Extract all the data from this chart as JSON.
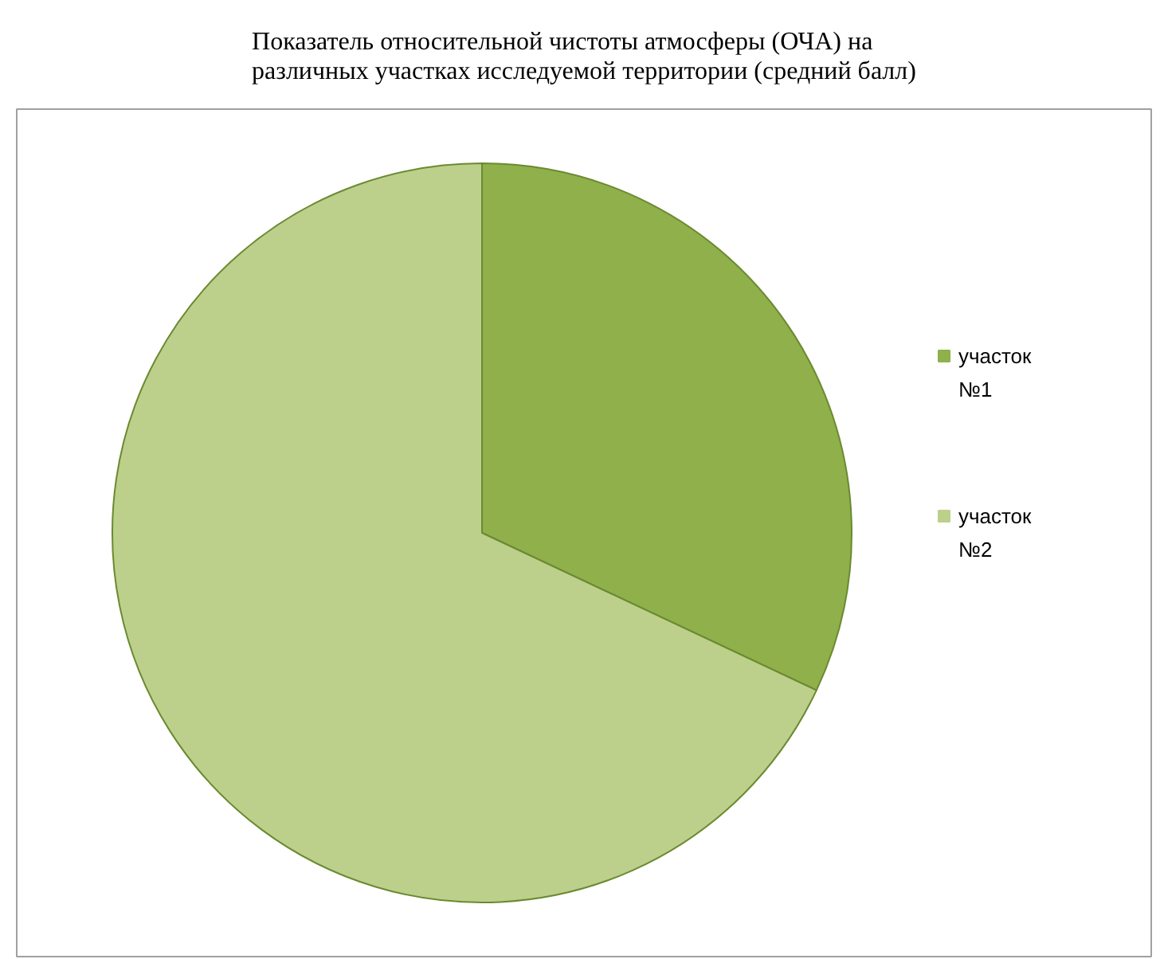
{
  "chart_data": {
    "type": "pie",
    "title": "Показатель относительной чистоты атмосферы (ОЧА) на различных участках исследуемой территории (средний балл)",
    "categories": [
      "участок №1",
      "участок №2"
    ],
    "values": [
      32,
      68
    ],
    "colors": [
      "#8fb04a",
      "#bcd08c"
    ],
    "legend": "right"
  }
}
